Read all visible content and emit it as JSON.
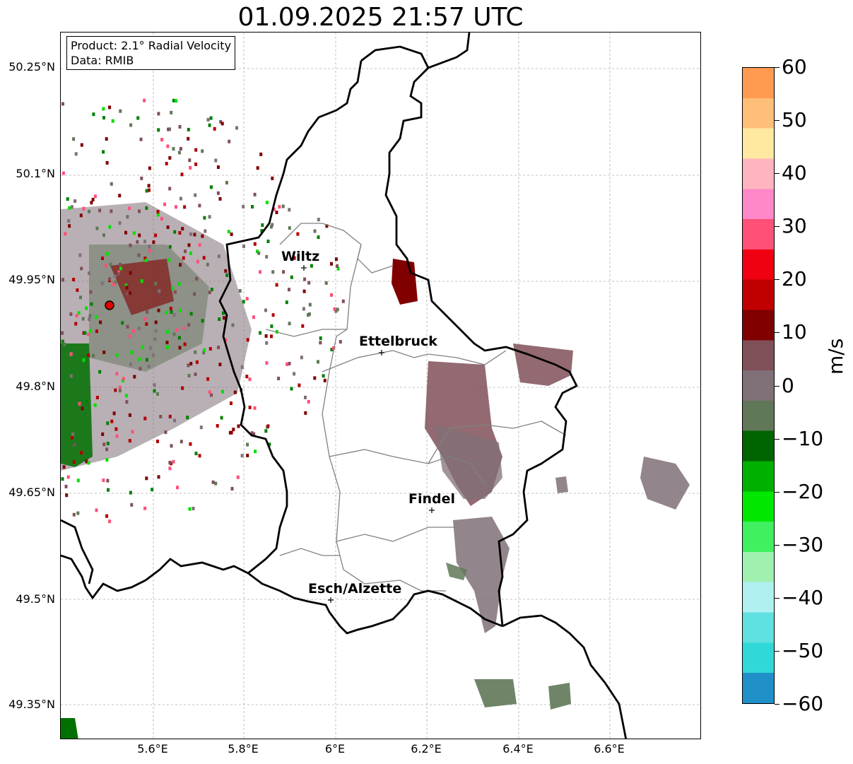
{
  "title": "01.09.2025 21:57 UTC",
  "info": {
    "product": "Product: 2.1° Radial Velocity",
    "data": "Data: RMIB"
  },
  "map": {
    "lat_labels": [
      "50.25°N",
      "50.1°N",
      "49.95°N",
      "49.8°N",
      "49.65°N",
      "49.5°N",
      "49.35°N"
    ],
    "lon_labels": [
      "5.6°E",
      "5.8°E",
      "6°E",
      "6.2°E",
      "6.4°E",
      "6.6°E"
    ],
    "cities": [
      {
        "name": "Wiltz"
      },
      {
        "name": "Ettelbruck"
      },
      {
        "name": "Findel"
      },
      {
        "name": "Esch/Alzette"
      }
    ],
    "radar_marker_color": "#e00000"
  },
  "colorbar": {
    "unit": "m/s",
    "tick_labels": [
      "60",
      "50",
      "40",
      "30",
      "20",
      "10",
      "0",
      "−10",
      "−20",
      "−30",
      "−40",
      "−50",
      "−60"
    ],
    "range": [
      -60,
      60
    ],
    "colors_top_to_bottom": [
      "#ff9a50",
      "#ffbf78",
      "#ffe8a0",
      "#ffb4c0",
      "#ff88c8",
      "#ff5078",
      "#f00010",
      "#c00000",
      "#800000",
      "#805058",
      "#807078",
      "#607858",
      "#006400",
      "#00b000",
      "#00e800",
      "#40f060",
      "#a0f0b0",
      "#b0f0f0",
      "#60e0e0",
      "#30d8d8",
      "#2090c8"
    ]
  }
}
